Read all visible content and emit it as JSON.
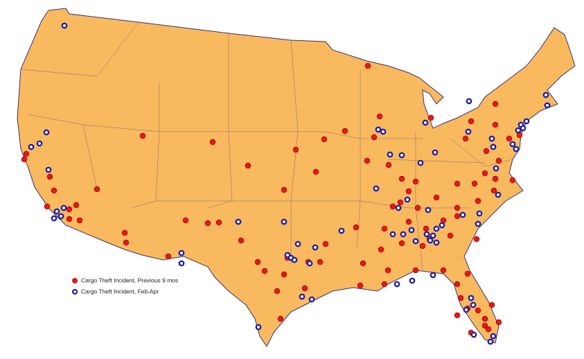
{
  "legend": {
    "items": [
      {
        "label": "Cargo Theft Incident, Previous 9 mos"
      },
      {
        "label": "Cargo Theft Incident, Feb-Apr"
      }
    ]
  }
}
